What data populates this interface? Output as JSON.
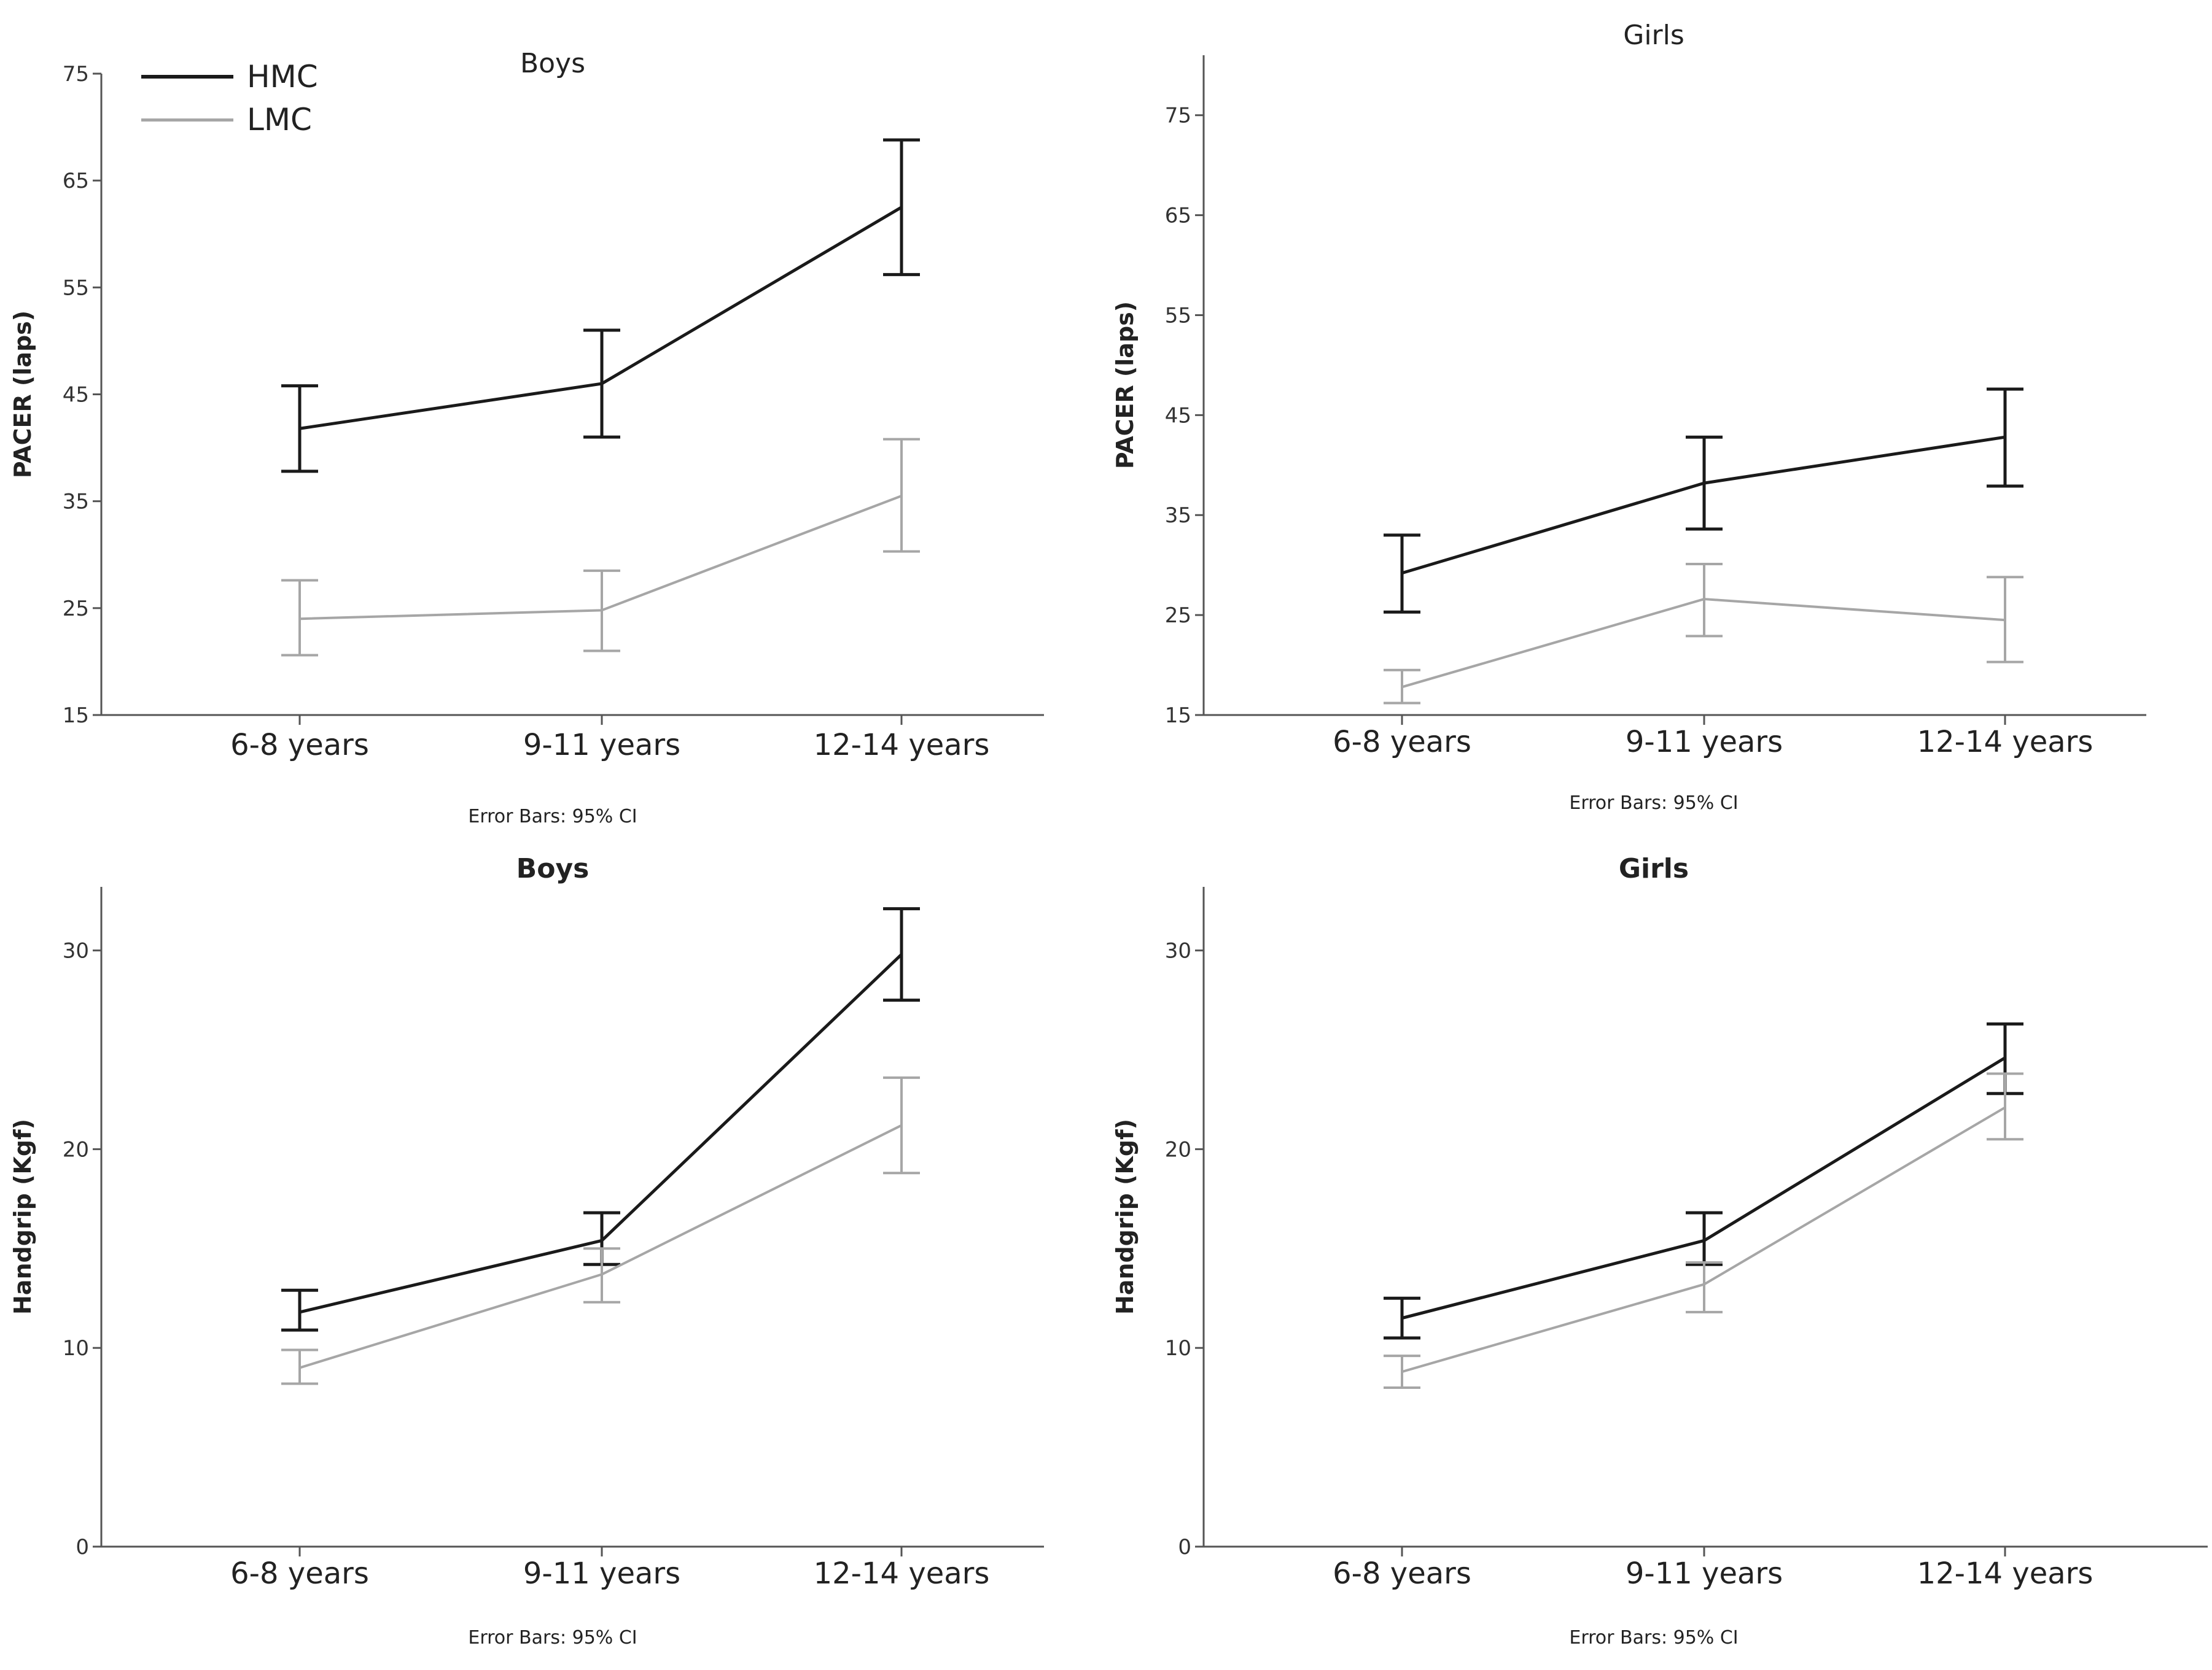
{
  "chart_data": [
    {
      "type": "line",
      "title": "Boys",
      "ylabel": "PACER (laps)",
      "footnote": "Error Bars: 95% CI",
      "categories": [
        "6-8 years",
        "9-11 years",
        "12-14 years"
      ],
      "ylim": [
        15,
        75
      ],
      "yticks": [
        15,
        25,
        35,
        45,
        55,
        65,
        75
      ],
      "series": [
        {
          "name": "HMC",
          "values": [
            41.8,
            46.0,
            62.5
          ],
          "ci_low": [
            37.8,
            41.0,
            56.2
          ],
          "ci_high": [
            45.8,
            51.0,
            68.8
          ]
        },
        {
          "name": "LMC",
          "values": [
            24.0,
            24.8,
            35.5
          ],
          "ci_low": [
            20.6,
            21.0,
            30.3
          ],
          "ci_high": [
            27.6,
            28.5,
            40.8
          ]
        }
      ]
    },
    {
      "type": "line",
      "title": "Girls",
      "ylabel": "PACER (laps)",
      "footnote": "Error Bars: 95% CI",
      "categories": [
        "6-8 years",
        "9-11 years",
        "12-14 years"
      ],
      "ylim": [
        15,
        81
      ],
      "yticks": [
        15,
        25,
        35,
        45,
        55,
        65,
        75
      ],
      "series": [
        {
          "name": "HMC",
          "values": [
            29.2,
            38.2,
            42.8
          ],
          "ci_low": [
            25.3,
            33.6,
            37.9
          ],
          "ci_high": [
            33.0,
            42.8,
            47.6
          ]
        },
        {
          "name": "LMC",
          "values": [
            17.8,
            26.6,
            24.5
          ],
          "ci_low": [
            16.2,
            22.9,
            20.3
          ],
          "ci_high": [
            19.5,
            30.1,
            28.8
          ]
        }
      ]
    },
    {
      "type": "line",
      "title": "Boys",
      "ylabel": "Handgrip (Kgf)",
      "footnote": "Error Bars: 95% CI",
      "categories": [
        "6-8 years",
        "9-11 years",
        "12-14 years"
      ],
      "ylim": [
        0,
        33.2
      ],
      "yticks": [
        0,
        10,
        20,
        30
      ],
      "series": [
        {
          "name": "HMC",
          "values": [
            11.8,
            15.4,
            29.8
          ],
          "ci_low": [
            10.9,
            14.2,
            27.5
          ],
          "ci_high": [
            12.9,
            16.8,
            32.1
          ]
        },
        {
          "name": "LMC",
          "values": [
            9.0,
            13.7,
            21.2
          ],
          "ci_low": [
            8.2,
            12.3,
            18.8
          ],
          "ci_high": [
            9.9,
            15.0,
            23.6
          ]
        }
      ]
    },
    {
      "type": "line",
      "title": "Girls",
      "ylabel": "Handgrip (Kgf)",
      "footnote": "Error Bars: 95% CI",
      "categories": [
        "6-8 years",
        "9-11 years",
        "12-14 years"
      ],
      "ylim": [
        0,
        33.2
      ],
      "yticks": [
        0,
        10,
        20,
        30
      ],
      "series": [
        {
          "name": "HMC",
          "values": [
            11.5,
            15.4,
            24.6
          ],
          "ci_low": [
            10.5,
            14.2,
            22.8
          ],
          "ci_high": [
            12.5,
            16.8,
            26.3
          ]
        },
        {
          "name": "LMC",
          "values": [
            8.8,
            13.2,
            22.1
          ],
          "ci_low": [
            8.0,
            11.8,
            20.5
          ],
          "ci_high": [
            9.6,
            14.3,
            23.8
          ]
        }
      ]
    }
  ],
  "legend": {
    "placement": "top-left",
    "items": [
      {
        "label": "HMC",
        "color": "#1a1a1a"
      },
      {
        "label": "LMC",
        "color": "#a6a6a6"
      }
    ]
  }
}
